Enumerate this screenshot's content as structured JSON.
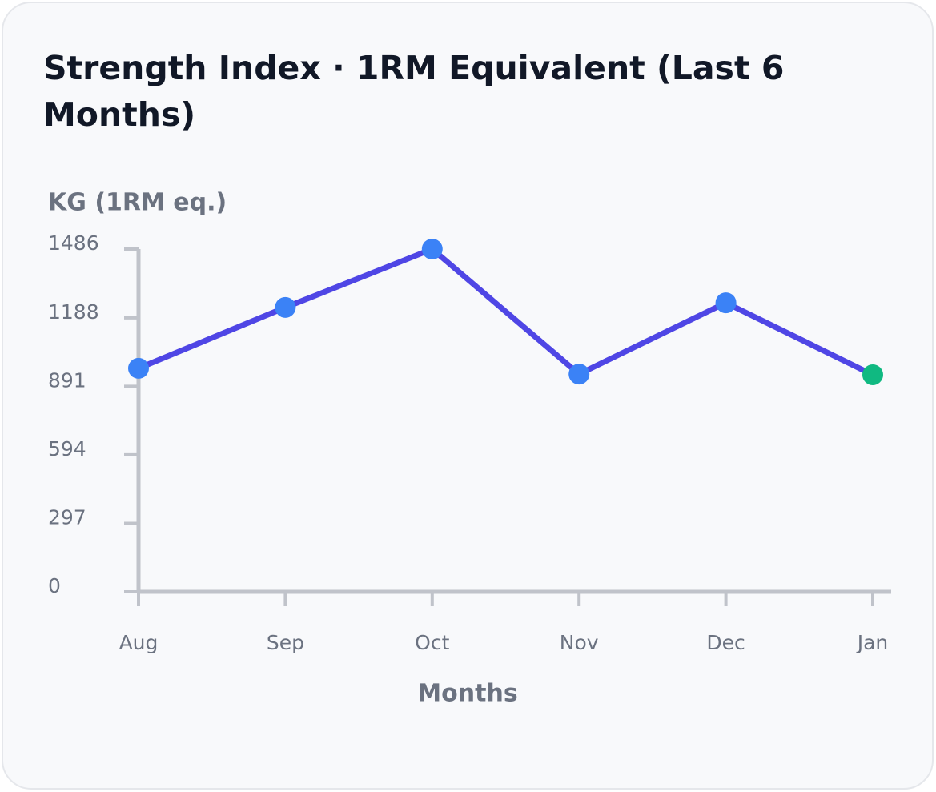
{
  "chart_data": {
    "type": "line",
    "title": "Strength Index · 1RM Equivalent (Last 6 Months)",
    "y_label": "KG (1RM eq.)",
    "x_label": "Months",
    "categories": [
      "Aug",
      "Sep",
      "Oct",
      "Nov",
      "Dec",
      "Jan"
    ],
    "values": [
      969,
      1233,
      1486,
      944,
      1253,
      941
    ],
    "color": "#4f46e5",
    "marker_color": "#3b82f6",
    "last_marker_color": "#10b981",
    "ylim": [
      0,
      1486
    ],
    "yticks": [
      0,
      297,
      594,
      891,
      1188,
      1486
    ],
    "grid": false
  }
}
